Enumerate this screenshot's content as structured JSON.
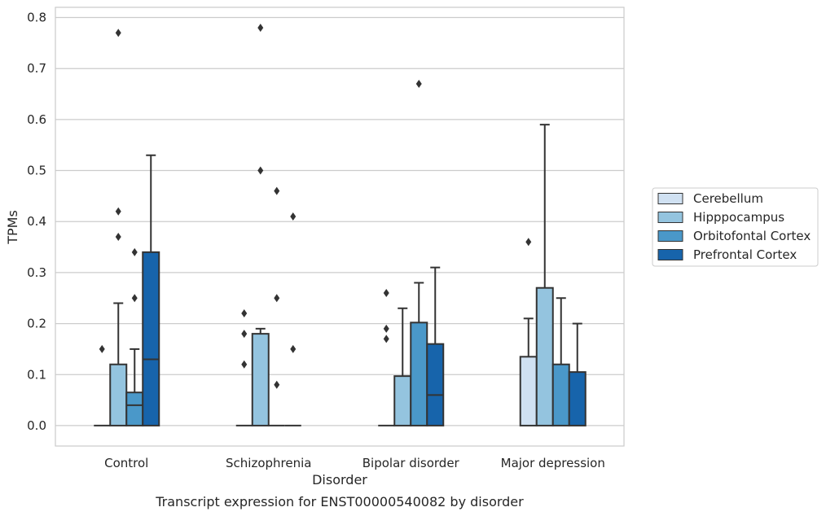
{
  "chart_data": {
    "type": "box",
    "caption": "Transcript expression for ENST00000540082 by disorder",
    "xlabel": "Disorder",
    "ylabel": "TPMs",
    "ylim": [
      -0.04,
      0.82
    ],
    "yticks": [
      0.0,
      0.1,
      0.2,
      0.3,
      0.4,
      0.5,
      0.6,
      0.7,
      0.8
    ],
    "ytick_labels": [
      "0.0",
      "0.1",
      "0.2",
      "0.3",
      "0.4",
      "0.5",
      "0.6",
      "0.7",
      "0.8"
    ],
    "grid": true,
    "legend_position": "right",
    "categories": [
      "Control",
      "Schizophrenia",
      "Bipolar disorder",
      "Major depression"
    ],
    "series": [
      {
        "name": "Cerebellum",
        "color": "#d0e1f2",
        "boxes": [
          {
            "q1": 0,
            "median": 0,
            "q3": 0,
            "whisker_low": 0,
            "whisker_high": 0,
            "outliers": [
              0.15
            ]
          },
          {
            "q1": 0,
            "median": 0,
            "q3": 0,
            "whisker_low": 0,
            "whisker_high": 0,
            "outliers": [
              0.12,
              0.18,
              0.22
            ]
          },
          {
            "q1": 0,
            "median": 0,
            "q3": 0,
            "whisker_low": 0,
            "whisker_high": 0,
            "outliers": [
              0.17,
              0.19,
              0.26
            ]
          },
          {
            "q1": 0,
            "median": 0,
            "q3": 0.135,
            "whisker_low": 0,
            "whisker_high": 0.21,
            "outliers": [
              0.36
            ]
          }
        ]
      },
      {
        "name": "Hipppocampus",
        "color": "#94c4df",
        "boxes": [
          {
            "q1": 0,
            "median": 0,
            "q3": 0.12,
            "whisker_low": 0,
            "whisker_high": 0.24,
            "outliers": [
              0.37,
              0.42,
              0.77
            ]
          },
          {
            "q1": 0,
            "median": 0,
            "q3": 0.18,
            "whisker_low": 0,
            "whisker_high": 0.19,
            "outliers": [
              0.5,
              0.78
            ]
          },
          {
            "q1": 0,
            "median": 0,
            "q3": 0.097,
            "whisker_low": 0,
            "whisker_high": 0.23,
            "outliers": []
          },
          {
            "q1": 0,
            "median": 0,
            "q3": 0.27,
            "whisker_low": 0,
            "whisker_high": 0.59,
            "outliers": []
          }
        ]
      },
      {
        "name": "Orbitofontal Cortex",
        "color": "#4a98c9",
        "boxes": [
          {
            "q1": 0,
            "median": 0.04,
            "q3": 0.065,
            "whisker_low": 0,
            "whisker_high": 0.15,
            "outliers": [
              0.25,
              0.34
            ]
          },
          {
            "q1": 0,
            "median": 0,
            "q3": 0,
            "whisker_low": 0,
            "whisker_high": 0,
            "outliers": [
              0.08,
              0.25,
              0.46
            ]
          },
          {
            "q1": 0,
            "median": 0,
            "q3": 0.202,
            "whisker_low": 0,
            "whisker_high": 0.28,
            "outliers": [
              0.67
            ]
          },
          {
            "q1": 0,
            "median": 0,
            "q3": 0.12,
            "whisker_low": 0,
            "whisker_high": 0.25,
            "outliers": []
          }
        ]
      },
      {
        "name": "Prefrontal Cortex",
        "color": "#1764ab",
        "boxes": [
          {
            "q1": 0,
            "median": 0.13,
            "q3": 0.34,
            "whisker_low": 0,
            "whisker_high": 0.53,
            "outliers": []
          },
          {
            "q1": 0,
            "median": 0,
            "q3": 0,
            "whisker_low": 0,
            "whisker_high": 0,
            "outliers": [
              0.15,
              0.41
            ]
          },
          {
            "q1": 0,
            "median": 0.06,
            "q3": 0.16,
            "whisker_low": 0,
            "whisker_high": 0.31,
            "outliers": []
          },
          {
            "q1": 0,
            "median": 0,
            "q3": 0.105,
            "whisker_low": 0,
            "whisker_high": 0.2,
            "outliers": []
          }
        ]
      }
    ]
  }
}
